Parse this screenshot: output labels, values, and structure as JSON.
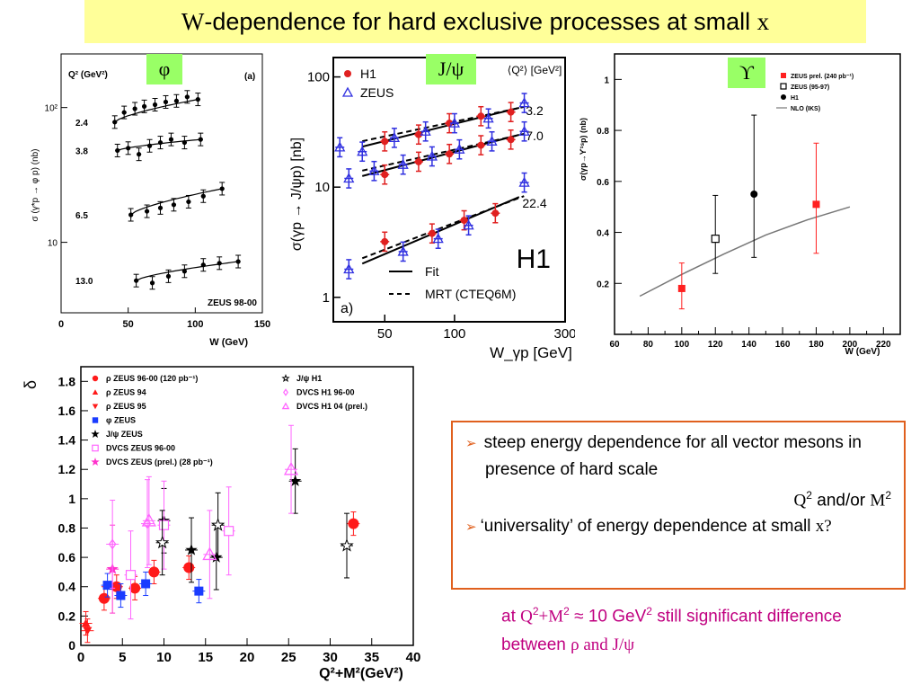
{
  "title": {
    "w": "W",
    "text": "-dependence for hard exclusive processes at small ",
    "x": "x"
  },
  "text_box": {
    "b1": "steep energy dependence for all vector mesons in presence of hard scale",
    "b1_q": "Q",
    "b1_q_sup": "2",
    "b1_mid": " and/or ",
    "b1_m": "M",
    "b1_m_sup": "2",
    "b2": "‘universality’ of energy dependence at small ",
    "b2_x": "x?"
  },
  "note": {
    "prefix": "at ",
    "q": "Q",
    "q_sup": "2",
    "plus": "+",
    "m": "M",
    "m_sup": "2",
    "mid": " ≈ 10 GeV",
    "gev_sup": "2",
    "tail": " still significant difference between ",
    "rho": "ρ",
    "and": " and ",
    "jpsi": "J/ψ"
  },
  "colors": {
    "title_bg": "#ffff99",
    "tag_bg": "#99ff66",
    "box_border": "#e0601e",
    "note_text": "#c00080",
    "h1_red": "#e02020",
    "zeus_blue": "#3030e0",
    "magenta": "#ff33cc"
  },
  "chart_data": [
    {
      "type": "scatter",
      "tag": "φ",
      "title": "",
      "xlabel": "W (GeV)",
      "ylabel": "σ (γ*p → φ p) (nb)",
      "xlim": [
        0,
        150
      ],
      "ylim": [
        3,
        250
      ],
      "ylog": true,
      "x_ticks": [
        "0",
        "50",
        "100",
        "150"
      ],
      "y_ticks": [
        {
          "v": 10,
          "label": "10"
        },
        {
          "v": 100,
          "label": "10²"
        }
      ],
      "header": "Q² (GeV²)",
      "panel_label": "(a)",
      "corner_label": "ZEUS 98-00",
      "series": [
        {
          "q2": "2.4",
          "x": [
            40,
            47,
            55,
            62,
            70,
            78,
            86,
            94,
            102
          ],
          "y": [
            78,
            92,
            98,
            102,
            105,
            110,
            112,
            120,
            115
          ]
        },
        {
          "q2": "3.8",
          "x": [
            42,
            50,
            58,
            66,
            74,
            82,
            92,
            104
          ],
          "y": [
            48,
            50,
            45,
            52,
            55,
            58,
            55,
            58
          ]
        },
        {
          "q2": "6.5",
          "x": [
            52,
            64,
            74,
            84,
            95,
            106,
            120
          ],
          "y": [
            16,
            17,
            18,
            19,
            20,
            22,
            25
          ]
        },
        {
          "q2": "13.0",
          "x": [
            56,
            68,
            80,
            92,
            106,
            118,
            132
          ],
          "y": [
            5.2,
            5.0,
            5.6,
            6.1,
            6.8,
            7.0,
            7.2
          ]
        }
      ]
    },
    {
      "type": "scatter",
      "tag": "J/ψ",
      "title": "",
      "xlabel": "W_γp [GeV]",
      "ylabel": "σ(γp → J/ψp) [nb]",
      "xlim": [
        30,
        300
      ],
      "ylim": [
        0.6,
        150
      ],
      "xlog": true,
      "ylog": true,
      "x_ticks": [
        "50",
        "100",
        "300"
      ],
      "y_ticks": [
        "1",
        "10",
        "100"
      ],
      "header": "⟨Q²⟩ [GeV²]",
      "panel_label": "a)",
      "experiment_label": "H1",
      "legend": [
        "H1",
        "ZEUS"
      ],
      "line_legend": [
        "Fit",
        "MRT (CTEQ6M)"
      ],
      "q2_labels": [
        "3.2",
        "7.0",
        "22.4"
      ],
      "series": [
        {
          "name": "H1",
          "q2": "3.2",
          "x": [
            50,
            70,
            95,
            130,
            175
          ],
          "y": [
            26,
            30,
            38,
            44,
            48
          ]
        },
        {
          "name": "ZEUS",
          "q2": "3.2",
          "x": [
            32,
            40,
            55,
            75,
            100,
            140,
            200
          ],
          "y": [
            23,
            21,
            28,
            32,
            38,
            42,
            58
          ]
        },
        {
          "name": "H1",
          "q2": "7.0",
          "x": [
            50,
            70,
            95,
            130,
            175
          ],
          "y": [
            13,
            17,
            20,
            24,
            27
          ]
        },
        {
          "name": "ZEUS",
          "q2": "7.0",
          "x": [
            35,
            45,
            60,
            80,
            105,
            145,
            200
          ],
          "y": [
            12,
            14,
            16,
            19,
            22,
            26,
            32
          ]
        },
        {
          "name": "H1",
          "q2": "22.4",
          "x": [
            50,
            80,
            110,
            150
          ],
          "y": [
            3.2,
            3.8,
            5,
            5.8
          ]
        },
        {
          "name": "ZEUS",
          "q2": "22.4",
          "x": [
            35,
            60,
            85,
            115,
            200
          ],
          "y": [
            1.8,
            2.6,
            3.4,
            4.5,
            11
          ]
        }
      ]
    },
    {
      "type": "scatter",
      "tag": "ϒ",
      "title": "",
      "xlabel": "W (GeV)",
      "ylabel": "σ(γp→ϒ¹ˢp) (nb)",
      "xlim": [
        60,
        230
      ],
      "ylim": [
        0,
        1.1
      ],
      "x_ticks": [
        "60",
        "80",
        "100",
        "120",
        "140",
        "160",
        "180",
        "200",
        "220"
      ],
      "y_ticks": [
        "0.2",
        "0.4",
        "0.6",
        "0.8",
        "1"
      ],
      "legend": [
        "ZEUS prel. (240 pb⁻¹)",
        "ZEUS (95-97)",
        "H1",
        "NLO (IKS)"
      ],
      "series": [
        {
          "name": "ZEUS prel. (240 pb⁻¹)",
          "x": [
            100,
            180
          ],
          "y": [
            0.18,
            0.51
          ],
          "err": [
            0.1,
            0.24
          ]
        },
        {
          "name": "ZEUS (95-97)",
          "x": [
            120
          ],
          "y": [
            0.375
          ],
          "err": [
            0.17
          ]
        },
        {
          "name": "H1",
          "x": [
            143
          ],
          "y": [
            0.55
          ],
          "err": [
            0.31
          ]
        }
      ],
      "curve": {
        "x": [
          75,
          100,
          125,
          150,
          175,
          200
        ],
        "y": [
          0.15,
          0.235,
          0.315,
          0.39,
          0.45,
          0.5
        ]
      }
    },
    {
      "type": "scatter",
      "title": "",
      "xlabel": "Q²+M²(GeV²)",
      "ylabel": "δ",
      "xlim": [
        0,
        40
      ],
      "ylim": [
        0,
        1.9
      ],
      "x_ticks": [
        "0",
        "5",
        "10",
        "15",
        "20",
        "25",
        "30",
        "35",
        "40"
      ],
      "y_ticks": [
        "0",
        "0.2",
        "0.4",
        "0.6",
        "0.8",
        "1",
        "1.2",
        "1.4",
        "1.6",
        "1.8"
      ],
      "legend_left": [
        "ρ ZEUS 96-00 (120 pb⁻¹)",
        "ρ ZEUS 94",
        "ρ ZEUS 95",
        "φ ZEUS",
        "J/ψ ZEUS",
        "DVCS ZEUS 96-00",
        "DVCS ZEUS (prel.) (28 pb⁻¹)"
      ],
      "legend_right": [
        "J/ψ H1",
        "DVCS H1 96-00",
        "DVCS H1 04 (prel.)"
      ],
      "series": [
        {
          "name": "ρ ZEUS 96-00 (120 pb⁻¹)",
          "x": [
            2.8,
            4.3,
            6.5,
            8.8,
            13,
            32.8
          ],
          "y": [
            0.32,
            0.4,
            0.39,
            0.5,
            0.53,
            0.83
          ]
        },
        {
          "name": "ρ ZEUS 94",
          "x": [
            0.6
          ],
          "y": [
            0.15
          ]
        },
        {
          "name": "ρ ZEUS 95",
          "x": [
            0.8
          ],
          "y": [
            0.1
          ]
        },
        {
          "name": "φ ZEUS",
          "x": [
            3.2,
            4.8,
            7.8,
            14.2
          ],
          "y": [
            0.41,
            0.34,
            0.42,
            0.37
          ]
        },
        {
          "name": "J/ψ ZEUS",
          "x": [
            10,
            13.3,
            16.3,
            25.8
          ],
          "y": [
            0.85,
            0.65,
            0.6,
            1.12
          ]
        },
        {
          "name": "DVCS ZEUS 96-00",
          "x": [
            6,
            10,
            17.8
          ],
          "y": [
            0.48,
            0.82,
            0.78
          ]
        },
        {
          "name": "DVCS ZEUS (prel.) (28 pb⁻¹)",
          "x": [
            3.8
          ],
          "y": [
            0.52
          ]
        },
        {
          "name": "J/ψ H1",
          "x": [
            9.8,
            16.5,
            32
          ],
          "y": [
            0.7,
            0.82,
            0.68
          ]
        },
        {
          "name": "DVCS H1 96-00",
          "x": [
            3.8,
            8
          ],
          "y": [
            0.69,
            0.83
          ]
        },
        {
          "name": "DVCS H1 04 (prel.)",
          "x": [
            8.2,
            15.5,
            25.3
          ],
          "y": [
            0.85,
            0.62,
            1.2
          ]
        }
      ]
    }
  ]
}
